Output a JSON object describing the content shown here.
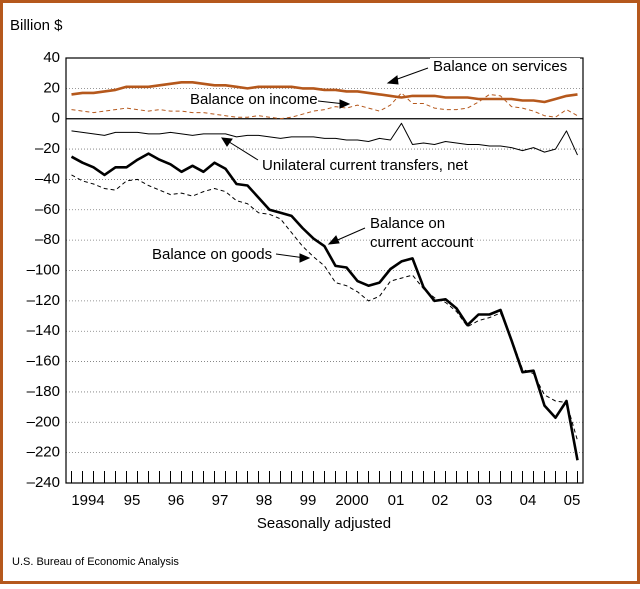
{
  "chart_data": {
    "type": "line",
    "y_axis_label": "Billion $",
    "x_axis_label": "Seasonally adjusted",
    "source": "U.S. Bureau of Economic Analysis",
    "x": [
      1994.125,
      1994.375,
      1994.625,
      1994.875,
      1995.125,
      1995.375,
      1995.625,
      1995.875,
      1996.125,
      1996.375,
      1996.625,
      1996.875,
      1997.125,
      1997.375,
      1997.625,
      1997.875,
      1998.125,
      1998.375,
      1998.625,
      1998.875,
      1999.125,
      1999.375,
      1999.625,
      1999.875,
      2000.125,
      2000.375,
      2000.625,
      2000.875,
      2001.125,
      2001.375,
      2001.625,
      2001.875,
      2002.125,
      2002.375,
      2002.625,
      2002.875,
      2003.125,
      2003.375,
      2003.625,
      2003.875,
      2004.125,
      2004.375,
      2004.625,
      2004.875,
      2005.125,
      2005.375,
      2005.625
    ],
    "xlim": [
      1994,
      2005.75
    ],
    "xticks": [
      {
        "value": 1994.5,
        "label": "1994"
      },
      {
        "value": 1995.5,
        "label": "95"
      },
      {
        "value": 1996.5,
        "label": "96"
      },
      {
        "value": 1997.5,
        "label": "97"
      },
      {
        "value": 1998.5,
        "label": "98"
      },
      {
        "value": 1999.5,
        "label": "99"
      },
      {
        "value": 2000.5,
        "label": "2000"
      },
      {
        "value": 2001.5,
        "label": "01"
      },
      {
        "value": 2002.5,
        "label": "02"
      },
      {
        "value": 2003.5,
        "label": "03"
      },
      {
        "value": 2004.5,
        "label": "04"
      },
      {
        "value": 2005.5,
        "label": "05"
      }
    ],
    "ylim": [
      -240,
      40
    ],
    "yticks": [
      40,
      20,
      0,
      {
        "value": -20,
        "label": "–20"
      },
      {
        "value": -40,
        "label": "–40"
      },
      {
        "value": -60,
        "label": "–60"
      },
      {
        "value": -80,
        "label": "–80"
      },
      {
        "value": -100,
        "label": "–100"
      },
      {
        "value": -120,
        "label": "–120"
      },
      {
        "value": -140,
        "label": "–140"
      },
      {
        "value": -160,
        "label": "–160"
      },
      {
        "value": -180,
        "label": "–180"
      },
      {
        "value": -200,
        "label": "–200"
      },
      {
        "value": -220,
        "label": "–220"
      },
      {
        "value": -240,
        "label": "–240"
      }
    ],
    "grid": true,
    "series": [
      {
        "name": "Balance on services",
        "color": "#b5581c",
        "line_style": "solid",
        "weight": "bold",
        "values": [
          16,
          17,
          17,
          18,
          19,
          21,
          21,
          21,
          22,
          23,
          24,
          24,
          23,
          22,
          22,
          21,
          20,
          21,
          21,
          21,
          21,
          20,
          20,
          19,
          19,
          18,
          18,
          17,
          16,
          15,
          14,
          15,
          15,
          15,
          14,
          14,
          14,
          13,
          13,
          13,
          13,
          12,
          12,
          11,
          13,
          15,
          16
        ]
      },
      {
        "name": "Balance on income",
        "color": "#b5581c",
        "line_style": "dashed",
        "weight": "normal",
        "values": [
          6,
          5,
          4,
          5,
          6,
          7,
          6,
          5,
          6,
          5,
          5,
          4,
          4,
          3,
          2,
          1,
          1,
          2,
          1,
          0,
          1,
          3,
          5,
          6,
          8,
          7,
          9,
          7,
          5,
          9,
          17,
          10,
          10,
          7,
          6,
          6,
          7,
          11,
          16,
          15,
          8,
          7,
          5,
          2,
          1,
          6,
          2
        ]
      },
      {
        "name": "Unilateral current transfers, net",
        "color": "#000000",
        "line_style": "solid",
        "weight": "normal",
        "values": [
          -8,
          -9,
          -10,
          -11,
          -9,
          -9,
          -9,
          -10,
          -10,
          -9,
          -10,
          -11,
          -10,
          -10,
          -10,
          -12,
          -11,
          -11,
          -12,
          -13,
          -12,
          -12,
          -12,
          -13,
          -13,
          -14,
          -14,
          -15,
          -13,
          -14,
          -3,
          -17,
          -16,
          -17,
          -15,
          -16,
          -17,
          -17,
          -18,
          -18,
          -19,
          -21,
          -19,
          -22,
          -20,
          -8,
          -24
        ]
      },
      {
        "name": "Balance on goods",
        "color": "#000000",
        "line_style": "dashed",
        "weight": "normal",
        "values": [
          -37,
          -41,
          -43,
          -46,
          -47,
          -41,
          -40,
          -44,
          -47,
          -50,
          -49,
          -51,
          -48,
          -46,
          -48,
          -54,
          -56,
          -62,
          -63,
          -66,
          -75,
          -84,
          -91,
          -97,
          -108,
          -110,
          -114,
          -120,
          -117,
          -107,
          -105,
          -103,
          -112,
          -118,
          -121,
          -127,
          -137,
          -133,
          -131,
          -128,
          -145,
          -165,
          -168,
          -182,
          -186,
          -187,
          -212
        ]
      },
      {
        "name": "Balance on current account",
        "name_lines": [
          "Balance on",
          "current account"
        ],
        "color": "#000000",
        "line_style": "solid",
        "weight": "bold",
        "values": [
          -25,
          -29,
          -32,
          -37,
          -32,
          -32,
          -27,
          -23,
          -27,
          -30,
          -35,
          -31,
          -35,
          -29,
          -33,
          -43,
          -44,
          -52,
          -60,
          -62,
          -64,
          -72,
          -79,
          -84,
          -97,
          -98,
          -107,
          -110,
          -108,
          -99,
          -94,
          -92,
          -111,
          -120,
          -119,
          -125,
          -136,
          -129,
          -129,
          -126,
          -146,
          -167,
          -166,
          -189,
          -197,
          -186,
          -225
        ]
      }
    ]
  }
}
